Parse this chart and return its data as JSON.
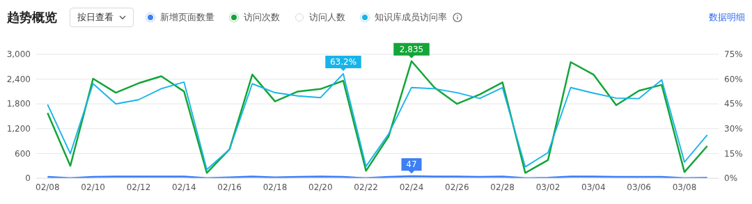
{
  "chart_data": {
    "type": "line",
    "title": "趋势概览",
    "annotations": [
      "按日查看",
      "数据明细"
    ],
    "categories": [
      "02/08",
      null,
      "02/10",
      null,
      "02/12",
      null,
      "02/14",
      null,
      "02/16",
      null,
      "02/18",
      null,
      "02/20",
      null,
      "02/22",
      null,
      "02/24",
      null,
      "02/26",
      null,
      "02/28",
      null,
      "03/02",
      null,
      "03/04",
      null,
      "03/06",
      null,
      "03/08",
      null
    ],
    "series": [
      {
        "name": "新增页面数量",
        "color": "#3d7ff5",
        "values": [
          30,
          0,
          30,
          40,
          40,
          40,
          40,
          0,
          20,
          40,
          20,
          30,
          40,
          30,
          0,
          30,
          47,
          40,
          40,
          30,
          40,
          0,
          10,
          40,
          40,
          30,
          30,
          30,
          0,
          10
        ],
        "value_labels": [
          null,
          null,
          null,
          null,
          null,
          null,
          null,
          null,
          null,
          null,
          null,
          null,
          null,
          null,
          null,
          null,
          "47",
          null,
          null,
          null,
          null,
          null,
          null,
          null,
          null,
          null,
          null,
          null,
          null,
          null
        ]
      },
      {
        "name": "访问次数",
        "color": "#13a538",
        "values": [
          1580,
          300,
          2410,
          2070,
          2300,
          2470,
          2100,
          130,
          700,
          2510,
          1860,
          2100,
          2160,
          2360,
          180,
          1020,
          2835,
          2200,
          1800,
          2030,
          2320,
          130,
          440,
          2810,
          2510,
          1770,
          2120,
          2260,
          150,
          780
        ],
        "value_labels": [
          null,
          null,
          null,
          null,
          null,
          null,
          null,
          null,
          null,
          null,
          null,
          null,
          null,
          null,
          null,
          null,
          "2,835",
          null,
          null,
          null,
          null,
          null,
          null,
          null,
          null,
          null,
          null,
          null,
          null,
          null
        ]
      },
      {
        "name": "访问人数",
        "color": "#d9d9d9",
        "values": [
          null,
          null,
          null,
          null,
          null,
          null,
          null,
          null,
          null,
          null,
          null,
          null,
          null,
          null,
          null,
          null,
          null,
          null,
          null,
          null,
          null,
          null,
          null,
          null,
          null,
          null,
          null,
          null,
          null,
          null
        ]
      },
      {
        "name": "知识库成员访问率",
        "color": "#17b4ea",
        "axis": "y2",
        "values": [
          44.6,
          14.9,
          57.2,
          45.0,
          47.5,
          54.2,
          58.2,
          5.3,
          17.5,
          57.2,
          51.8,
          49.8,
          48.8,
          63.2,
          7.2,
          27.0,
          54.9,
          54.2,
          51.8,
          48.3,
          54.8,
          6.9,
          15.5,
          54.9,
          51.5,
          48.5,
          48.2,
          59.5,
          9.8,
          26.2
        ],
        "value_labels": [
          null,
          null,
          null,
          null,
          null,
          null,
          null,
          null,
          null,
          null,
          null,
          null,
          null,
          "63.2%",
          null,
          null,
          null,
          null,
          null,
          null,
          null,
          null,
          null,
          null,
          null,
          null,
          null,
          null,
          null,
          null
        ]
      }
    ],
    "ylim": [
      0,
      3000
    ],
    "yticks": [
      0,
      600,
      {
        "value": 1200,
        "label": "1,200"
      },
      {
        "value": 1800,
        "label": "1,800"
      },
      {
        "value": 2400,
        "label": "2,400"
      },
      {
        "value": 3000,
        "label": "3,000"
      }
    ],
    "y2lim": [
      0,
      75
    ],
    "y2ticks": [
      {
        "value": 0,
        "label": "0%"
      },
      {
        "value": 15,
        "label": "15%"
      },
      {
        "value": 30,
        "label": "30%"
      },
      {
        "value": 45,
        "label": "45%"
      },
      {
        "value": 60,
        "label": "60%"
      },
      {
        "value": 75,
        "label": "75%"
      }
    ],
    "grid": "y",
    "legend": "top",
    "marker": "none",
    "line_style": "solid"
  }
}
